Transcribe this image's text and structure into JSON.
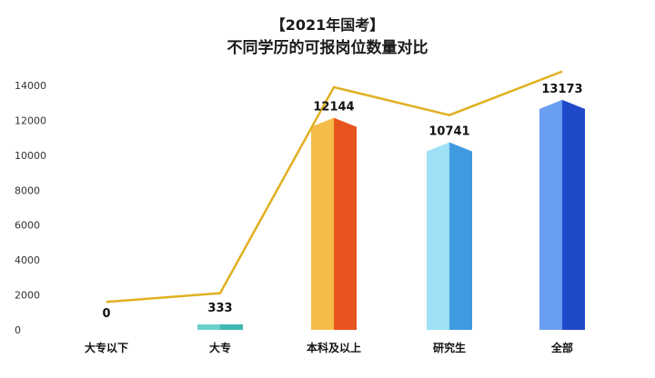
{
  "title": "【2021年国考】",
  "subtitle": "不同学历的可报岗位数量对比",
  "chart_data": {
    "type": "bar",
    "title": "【2021年国考】",
    "subtitle": "不同学历的可报岗位数量对比",
    "categories": [
      "大专以下",
      "大专",
      "本科及以上",
      "研究生",
      "全部"
    ],
    "values": [
      0,
      333,
      12144,
      10741,
      13173
    ],
    "value_labels": [
      "0",
      "333",
      "12144",
      "10741",
      "13173"
    ],
    "line_overlay": [
      1600,
      2100,
      13900,
      12300,
      14800
    ],
    "ylim": [
      0,
      14000
    ],
    "yticks": [
      0,
      2000,
      4000,
      6000,
      8000,
      10000,
      12000,
      14000
    ],
    "ytick_labels": [
      "0",
      "2000",
      "4000",
      "6000",
      "8000",
      "10000",
      "12000",
      "14000"
    ],
    "grid": false,
    "colors": {
      "line": "#e0b020",
      "bar_teal": [
        "#6ad0cc",
        "#3fb8b3"
      ],
      "bar_orange": [
        "#f6bc4a",
        "#e8541e"
      ],
      "bar_lightblue": [
        "#9fe0f6",
        "#3f9ae0"
      ],
      "bar_blue": [
        "#6a9ef0",
        "#1f49c8"
      ]
    }
  }
}
